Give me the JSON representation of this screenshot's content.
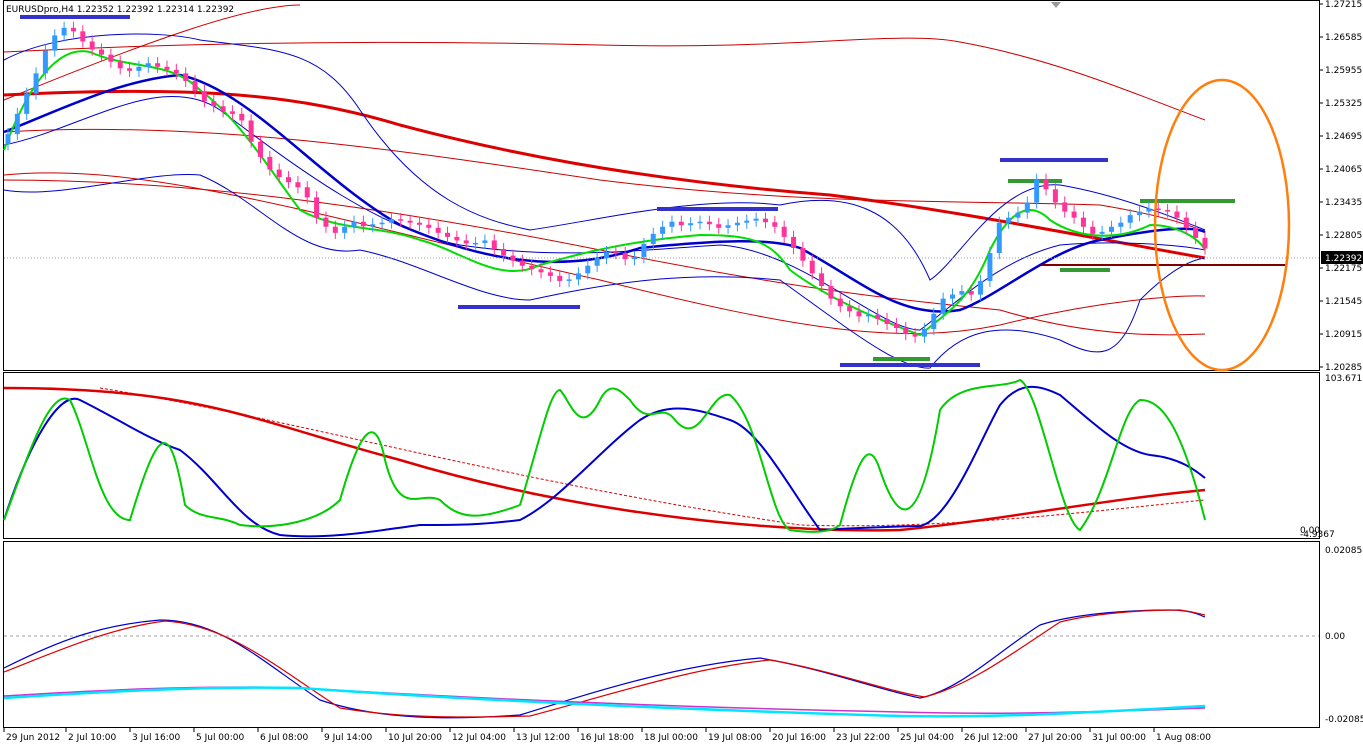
{
  "header": {
    "title": "EURUSDpro,H4  1.22352 1.22392 1.22314 1.22392"
  },
  "current_price": "1.22392",
  "colors": {
    "bull": "#3399ff",
    "bear": "#ff3399",
    "ema_fast": "#00dd00",
    "ema_slow": "#0000cc",
    "ma_long": "#dd0000",
    "bands_blue": "#0000cc",
    "bands_red": "#cc0000",
    "hline": "#800000",
    "ellipse": "#ff7f0e",
    "cyan": "#00e5ff",
    "magenta": "#cc33cc"
  },
  "price_axis": [
    "1.27215",
    "1.26585",
    "1.25955",
    "1.25325",
    "1.24695",
    "1.24065",
    "1.23435",
    "1.22805",
    "1.22175",
    "1.21545",
    "1.20915",
    "1.20285"
  ],
  "stoch_axis": [
    "103.6715",
    "0.00",
    "-4.9367"
  ],
  "macd_axis": [
    "0.020858",
    "0.00",
    "-0.02085"
  ],
  "time_axis": [
    "29 Jun 2012",
    "2 Jul 10:00",
    "3 Jul 16:00",
    "5 Jul 00:00",
    "6 Jul 08:00",
    "9 Jul 14:00",
    "10 Jul 20:00",
    "12 Jul 04:00",
    "13 Jul 12:00",
    "16 Jul 18:00",
    "18 Jul 00:00",
    "19 Jul 08:00",
    "20 Jul 16:00",
    "23 Jul 22:00",
    "25 Jul 04:00",
    "26 Jul 12:00",
    "27 Jul 20:00",
    "31 Jul 00:00",
    "1 Aug 08:00"
  ],
  "chart_data": {
    "type": "candlestick",
    "symbol": "EURUSDpro",
    "timeframe": "H4",
    "ylim": [
      1.2005,
      1.2722
    ],
    "current": 1.22392,
    "main_close": [
      1.2465,
      1.2505,
      1.2545,
      1.2585,
      1.263,
      1.266,
      1.2675,
      1.2668,
      1.2648,
      1.2632,
      1.2622,
      1.2608,
      1.2595,
      1.259,
      1.2598,
      1.2605,
      1.2598,
      1.2592,
      1.2585,
      1.257,
      1.255,
      1.253,
      1.252,
      1.251,
      1.2505,
      1.2492,
      1.245,
      1.242,
      1.2395,
      1.238,
      1.237,
      1.236,
      1.234,
      1.23,
      1.2282,
      1.227,
      1.2282,
      1.2292,
      1.2283,
      1.2287,
      1.229,
      1.2297,
      1.2294,
      1.229,
      1.2286,
      1.228,
      1.227,
      1.2262,
      1.2255,
      1.2249,
      1.225,
      1.2255,
      1.2238,
      1.2225,
      1.2215,
      1.2205,
      1.2198,
      1.2192,
      1.2185,
      1.2175,
      1.2178,
      1.219,
      1.2205,
      1.222,
      1.2232,
      1.223,
      1.2218,
      1.2222,
      1.2248,
      1.2268,
      1.2282,
      1.2292,
      1.2285,
      1.2289,
      1.2292,
      1.2287,
      1.228,
      1.2285,
      1.229,
      1.2294,
      1.2298,
      1.2291,
      1.2282,
      1.2262,
      1.224,
      1.2215,
      1.219,
      1.2165,
      1.214,
      1.2125,
      1.2115,
      1.2105,
      1.2108,
      1.21,
      1.209,
      1.2082,
      1.207,
      1.2065,
      1.208,
      1.211,
      1.214,
      1.2148,
      1.2155,
      1.2148,
      1.2175,
      1.223,
      1.229,
      1.23,
      1.231,
      1.233,
      1.2375,
      1.2356,
      1.233,
      1.2312,
      1.23,
      1.2282,
      1.2268,
      1.2272,
      1.2282,
      1.229,
      1.2305,
      1.2312,
      1.2318,
      1.2315,
      1.2312,
      1.23,
      1.228,
      1.226,
      1.2239
    ],
    "stoch_axis_range": [
      -4.9367,
      103.6715
    ],
    "macd_axis_range": [
      -0.02085,
      0.020858
    ]
  }
}
